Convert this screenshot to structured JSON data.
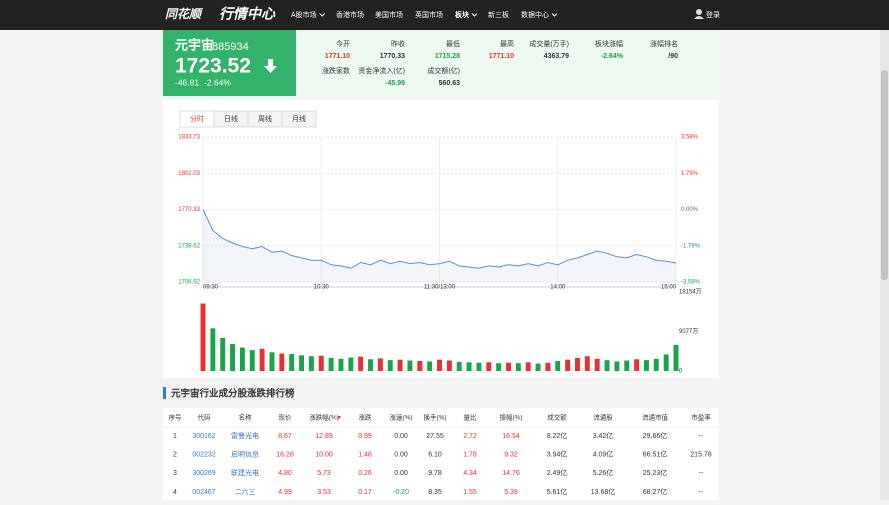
{
  "nav": {
    "brand": "同花顺",
    "title": "行情中心",
    "items": [
      "A股市场",
      "香港市场",
      "美国市场",
      "英国市场",
      "板块",
      "新三板",
      "数据中心"
    ],
    "login": "登录"
  },
  "quote": {
    "name": "元宇宙",
    "code": "885934",
    "price": "1723.52",
    "change": "-46.81",
    "change_pct": "-2.64%",
    "stats": [
      {
        "label": "今开",
        "value": "1771.10"
      },
      {
        "label": "昨收",
        "value": "1770.33"
      },
      {
        "label": "最低",
        "value": "1715.28"
      },
      {
        "label": "最高",
        "value": "1771.10"
      },
      {
        "label": "成交量(万手)",
        "value": "4363.79"
      },
      {
        "label": "板块涨幅",
        "value": "-2.64%"
      },
      {
        "label": "涨幅排名",
        "value": "/90"
      },
      {
        "label": "涨跌家数"
      },
      {
        "label": "资金净流入(亿)",
        "value": "-45.99"
      },
      {
        "label": "成交额(亿)",
        "value": "560.63"
      }
    ]
  },
  "tabs": [
    "分时",
    "日线",
    "周线",
    "月线"
  ],
  "chart_data": [
    {
      "type": "line",
      "color": "#5b8fd0",
      "grid": true,
      "categories": [
        "09:30",
        null,
        null,
        null,
        null,
        null,
        null,
        null,
        null,
        null,
        null,
        null,
        "10:30",
        null,
        null,
        null,
        null,
        null,
        null,
        null,
        null,
        null,
        null,
        null,
        "11:30/13:00",
        null,
        null,
        null,
        null,
        null,
        null,
        null,
        null,
        null,
        null,
        null,
        "14:00",
        null,
        null,
        null,
        null,
        null,
        null,
        null,
        null,
        null,
        null,
        null,
        "15:00"
      ],
      "values": [
        1770.33,
        1752,
        1745,
        1741,
        1738,
        1736,
        1738,
        1733,
        1734,
        1730,
        1728,
        1726,
        1726,
        1722,
        1721,
        1719,
        1724,
        1722,
        1726,
        1723,
        1725,
        1723,
        1724,
        1722,
        1723,
        1725,
        1721,
        1720,
        1719,
        1721,
        1720,
        1722,
        1721,
        1723,
        1721,
        1724,
        1722,
        1726,
        1728,
        1731,
        1734,
        1732,
        1729,
        1728,
        1731,
        1729,
        1726,
        1725,
        1723.52
      ],
      "ylim": [
        1706.92,
        1833.73
      ],
      "yticks": [
        1706.92,
        1738.62,
        1770.33,
        1802.03,
        1833.73
      ],
      "y2lim": [
        -3.58,
        3.58
      ],
      "y2ticks": [
        {
          "value": -3.58,
          "label": "-3.58%"
        },
        {
          "value": -1.79,
          "label": "-1.79%"
        },
        {
          "value": 0,
          "label": "0.00%"
        },
        {
          "value": 1.79,
          "label": "1.79%"
        },
        {
          "value": 3.58,
          "label": "3.58%"
        }
      ]
    },
    {
      "type": "bar",
      "up_color": "#e93030",
      "down_color": "#1aa34a",
      "values": [
        15500,
        9800,
        7600,
        6200,
        5400,
        4800,
        5100,
        4300,
        4000,
        3900,
        3600,
        3400,
        3500,
        3000,
        2800,
        3100,
        3300,
        2700,
        2900,
        2500,
        2600,
        2400,
        2300,
        2200,
        2600,
        2400,
        2100,
        2000,
        1900,
        2000,
        1800,
        1900,
        1800,
        2000,
        1700,
        1900,
        2300,
        2600,
        3000,
        3400,
        2800,
        2500,
        2200,
        2400,
        2700,
        2500,
        2800,
        3800,
        6000
      ],
      "ylim": [
        0,
        18154
      ],
      "yticks": [
        0,
        {
          "value": 9077,
          "label": "9077万"
        },
        {
          "value": 18154,
          "label": "18154万"
        }
      ]
    }
  ],
  "table": {
    "title": "元宇宙行业成分股涨跌排行榜",
    "headers": [
      "序号",
      "代码",
      "名称",
      "现价",
      "涨跌幅(%)",
      "涨跌",
      "涨速(%)",
      "换手(%)",
      "量比",
      "振幅(%)",
      "成交额",
      "流通股",
      "流通市值",
      "市盈率"
    ],
    "rows": [
      [
        "1",
        "300162",
        "雷曼光电",
        "8.67",
        "12.89",
        "0.99",
        "0.00",
        "27.55",
        "2.72",
        "16.54",
        "8.22亿",
        "3.42亿",
        "29.66亿",
        "--"
      ],
      [
        "2",
        "002232",
        "启明信息",
        "16.28",
        "10.00",
        "1.48",
        "0.00",
        "6.10",
        "1.78",
        "9.32",
        "3.94亿",
        "4.09亿",
        "66.51亿",
        "215.78"
      ],
      [
        "3",
        "300269",
        "联建光电",
        "4.80",
        "5.73",
        "0.26",
        "0.00",
        "9.78",
        "4.34",
        "14.76",
        "2.49亿",
        "5.26亿",
        "25.23亿",
        "--"
      ],
      [
        "4",
        "002467",
        "二六三",
        "4.99",
        "3.53",
        "0.17",
        "-0.20",
        "8.35",
        "1.55",
        "5.39",
        "5.61亿",
        "13.68亿",
        "68.27亿",
        "--"
      ]
    ]
  }
}
